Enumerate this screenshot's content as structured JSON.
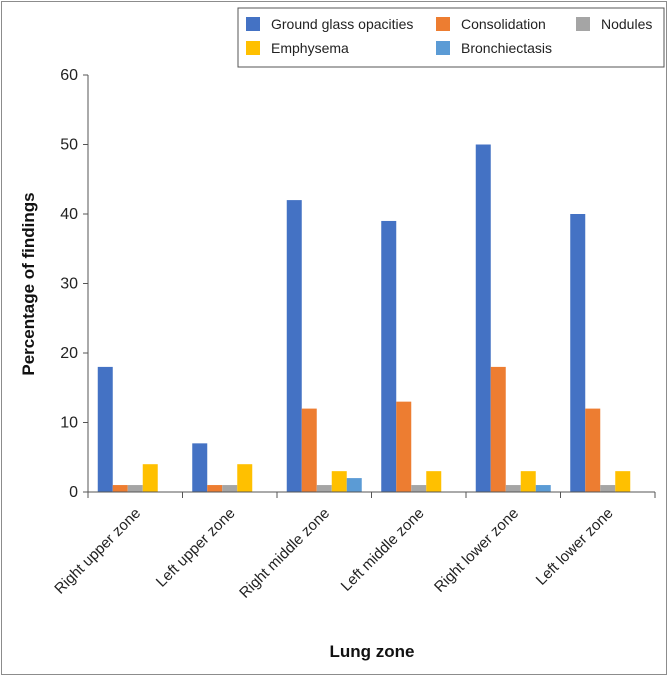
{
  "chart_data": {
    "type": "bar",
    "title": "",
    "xlabel": "Lung zone",
    "ylabel": "Percentage of findings",
    "ylim": [
      0,
      60
    ],
    "yticks": [
      "0",
      "10",
      "20",
      "30",
      "40",
      "50",
      "60"
    ],
    "grid": false,
    "legend_position": "top-right",
    "categories": [
      "Right upper zone",
      "Left upper zone",
      "Right middle zone",
      "Left middle zone",
      "Right lower zone",
      "Left lower zone"
    ],
    "series": [
      {
        "name": "Ground glass opacities",
        "color": "#4472C4",
        "values": [
          18,
          7,
          42,
          39,
          50,
          40
        ]
      },
      {
        "name": "Consolidation",
        "color": "#ED7D31",
        "values": [
          1,
          1,
          12,
          13,
          18,
          12
        ]
      },
      {
        "name": "Nodules",
        "color": "#A5A5A5",
        "values": [
          1,
          1,
          1,
          1,
          1,
          1
        ]
      },
      {
        "name": "Emphysema",
        "color": "#FFC000",
        "values": [
          4,
          4,
          3,
          3,
          3,
          3
        ]
      },
      {
        "name": "Bronchiectasis",
        "color": "#5B9BD5",
        "values": [
          0,
          0,
          2,
          0,
          1,
          0
        ]
      }
    ]
  }
}
